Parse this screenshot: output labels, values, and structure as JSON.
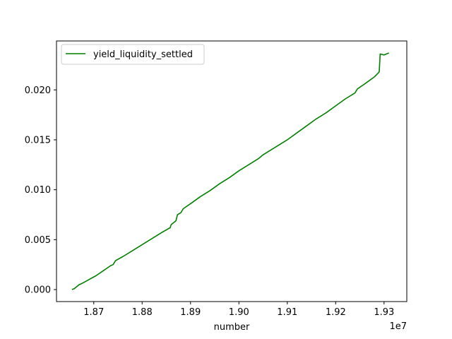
{
  "chart_data": {
    "type": "line",
    "title": "",
    "xlabel": "number",
    "ylabel": "",
    "x_offset_label": "1e7",
    "xlim": [
      1.8623,
      1.9347
    ],
    "ylim": [
      -0.0012,
      0.0249
    ],
    "x_ticks": [
      1.87,
      1.88,
      1.89,
      1.9,
      1.91,
      1.92,
      1.93
    ],
    "x_tick_labels": [
      "1.87",
      "1.88",
      "1.89",
      "1.90",
      "1.91",
      "1.92",
      "1.93"
    ],
    "y_ticks": [
      0.0,
      0.005,
      0.01,
      0.015,
      0.02
    ],
    "y_tick_labels": [
      "0.000",
      "0.005",
      "0.010",
      "0.015",
      "0.020"
    ],
    "legend": {
      "location": "upper-left",
      "entries": [
        "yield_liquidity_settled"
      ]
    },
    "grid": false,
    "series": [
      {
        "name": "yield_liquidity_settled",
        "color": "#008000",
        "x": [
          1.8655,
          1.866,
          1.8675,
          1.87,
          1.8735,
          1.8745,
          1.876,
          1.88,
          1.884,
          1.8858,
          1.886,
          1.8675,
          1.8672,
          1.868
        ],
        "y": [
          0.0,
          0.0001,
          0.0006,
          0.0015,
          0.0025,
          0.0029,
          0.0034,
          0.0045,
          0.0057,
          0.0062,
          0.0062,
          0.0006,
          0.0006,
          0.0008
        ]
      }
    ],
    "series_full": {
      "x": [
        1.8655,
        1.866,
        1.8665,
        1.867,
        1.8675,
        1.869,
        1.8705,
        1.872,
        1.8735,
        1.874,
        1.8745,
        1.876,
        1.878,
        1.88,
        1.882,
        1.884,
        1.8858,
        1.886,
        1.887,
        1.8873,
        1.888,
        1.8885,
        1.89,
        1.892,
        1.894,
        1.896,
        1.898,
        1.9,
        1.902,
        1.904,
        1.905,
        1.906,
        1.908,
        1.91,
        1.912,
        1.914,
        1.916,
        1.918,
        1.92,
        1.922,
        1.924,
        1.9245,
        1.926,
        1.928,
        1.929,
        1.9292,
        1.93,
        1.931
      ],
      "y": [
        0.0,
        0.0001,
        0.0003,
        0.0005,
        0.0006,
        0.001,
        0.0014,
        0.0019,
        0.0024,
        0.0025,
        0.0029,
        0.0033,
        0.0039,
        0.0045,
        0.0051,
        0.0057,
        0.0062,
        0.0065,
        0.0069,
        0.0075,
        0.0077,
        0.0081,
        0.0086,
        0.0093,
        0.0099,
        0.0106,
        0.0112,
        0.0119,
        0.0125,
        0.0131,
        0.0135,
        0.0138,
        0.0144,
        0.015,
        0.0157,
        0.0164,
        0.0171,
        0.0177,
        0.0184,
        0.0191,
        0.0197,
        0.0201,
        0.0206,
        0.0213,
        0.0218,
        0.0236,
        0.0235,
        0.0237
      ]
    }
  }
}
